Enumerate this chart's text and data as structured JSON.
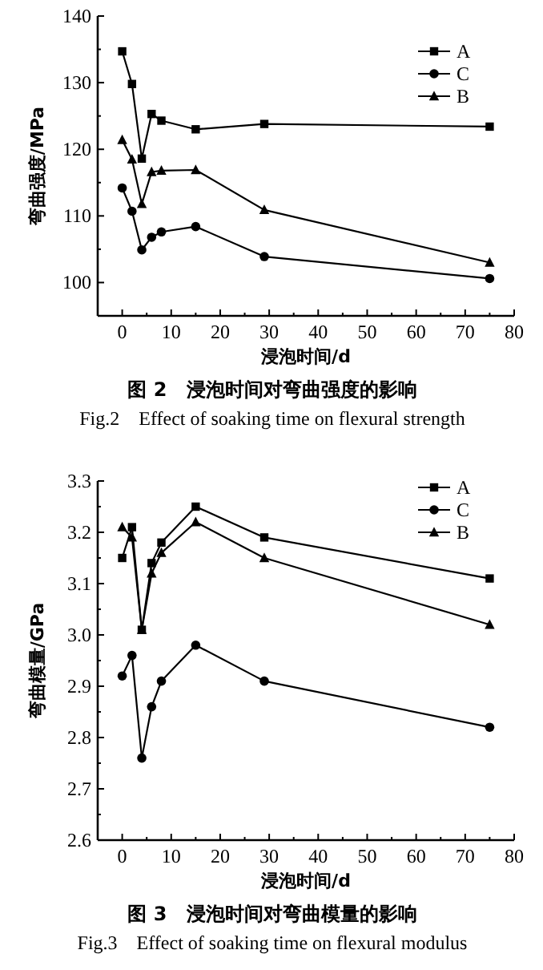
{
  "chart_data": [
    {
      "type": "line",
      "title": "图 2　浸泡时间对弯曲强度的影响",
      "subtitle": "Fig.2　Effect of soaking time on flexural strength",
      "xlabel": "浸泡时间/d",
      "ylabel": "弯曲强度/MPa",
      "x": [
        0,
        2,
        4,
        6,
        8,
        15,
        29,
        75
      ],
      "xlim": [
        -5,
        80
      ],
      "xticks": [
        0,
        10,
        20,
        30,
        40,
        50,
        60,
        70,
        80
      ],
      "ylim": [
        95,
        140
      ],
      "yticks": [
        100,
        110,
        120,
        130,
        140
      ],
      "legend": "top right",
      "grid": false,
      "series": [
        {
          "name": "A",
          "color": "#000000",
          "marker": "square",
          "values": [
            134.7,
            129.8,
            118.6,
            125.3,
            124.3,
            123.0,
            123.8,
            123.4
          ]
        },
        {
          "name": "C",
          "color": "#000000",
          "marker": "circle",
          "values": [
            114.2,
            110.7,
            104.9,
            106.8,
            107.6,
            108.4,
            103.9,
            100.6
          ]
        },
        {
          "name": "B",
          "color": "#000000",
          "marker": "triangle",
          "values": [
            121.4,
            118.5,
            111.8,
            116.6,
            116.8,
            116.9,
            110.9,
            103.0
          ]
        }
      ]
    },
    {
      "type": "line",
      "title": "图 3　浸泡时间对弯曲模量的影响",
      "subtitle": "Fig.3　Effect of soaking time on flexural modulus",
      "xlabel": "浸泡时间/d",
      "ylabel": "弯曲模量/GPa",
      "x": [
        0,
        2,
        4,
        6,
        8,
        15,
        29,
        75
      ],
      "xlim": [
        -5,
        80
      ],
      "xticks": [
        0,
        10,
        20,
        30,
        40,
        50,
        60,
        70,
        80
      ],
      "ylim": [
        2.6,
        3.3
      ],
      "yticks": [
        2.6,
        2.7,
        2.8,
        2.9,
        {
          "value": 3.0,
          "label": "3.0"
        },
        3.1,
        3.2,
        3.3
      ],
      "legend": "top right",
      "grid": false,
      "series": [
        {
          "name": "A",
          "color": "#000000",
          "marker": "square",
          "values": [
            3.15,
            3.21,
            3.01,
            3.14,
            3.18,
            3.25,
            3.19,
            3.11
          ]
        },
        {
          "name": "C",
          "color": "#000000",
          "marker": "circle",
          "values": [
            2.92,
            2.96,
            2.76,
            2.86,
            2.91,
            2.98,
            2.91,
            2.82
          ]
        },
        {
          "name": "B",
          "color": "#000000",
          "marker": "triangle",
          "values": [
            3.21,
            3.19,
            3.01,
            3.12,
            3.16,
            3.22,
            3.15,
            3.02
          ]
        }
      ]
    }
  ]
}
